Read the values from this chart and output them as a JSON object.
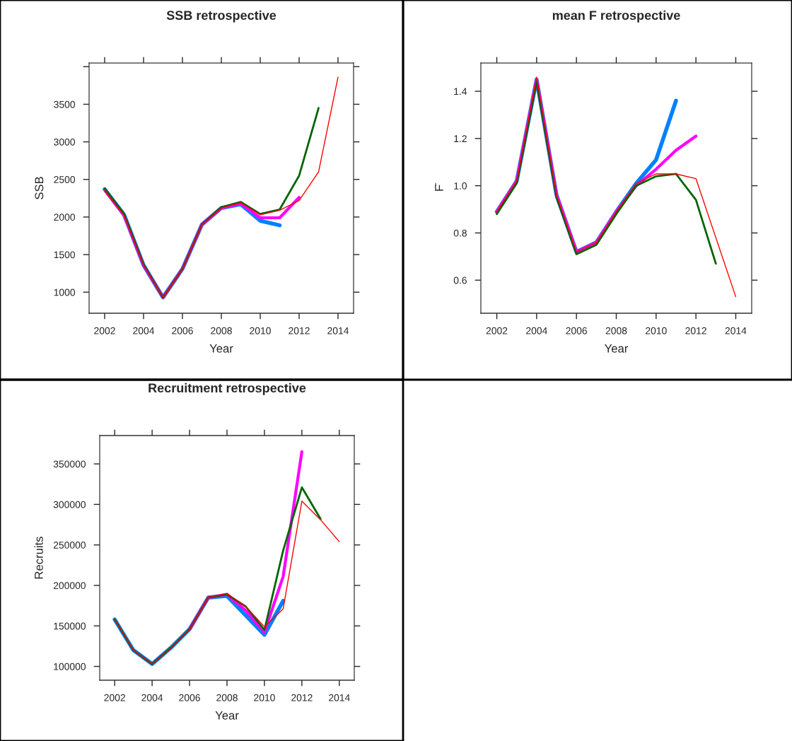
{
  "chart_data": [
    {
      "type": "line",
      "title": "SSB retrospective",
      "xlabel": "Year",
      "ylabel": "SSB",
      "x": [
        2002,
        2003,
        2004,
        2005,
        2006,
        2007,
        2008,
        2009,
        2010,
        2011,
        2012,
        2013,
        2014
      ],
      "series": [
        {
          "color": "#0080ff",
          "values": [
            2370,
            2030,
            1360,
            930,
            1310,
            1900,
            2120,
            2170,
            1950,
            1890,
            null,
            null,
            null
          ]
        },
        {
          "color": "#ff00ff",
          "values": [
            2360,
            2020,
            1360,
            930,
            1310,
            1900,
            2120,
            2180,
            1990,
            1990,
            2260,
            null,
            null
          ]
        },
        {
          "color": "#006400",
          "values": [
            2380,
            2040,
            1370,
            930,
            1310,
            1900,
            2130,
            2200,
            2040,
            2100,
            2550,
            3450,
            null
          ]
        },
        {
          "color": "#ff0000",
          "values": [
            2350,
            2020,
            1360,
            930,
            1310,
            1900,
            2120,
            2190,
            2030,
            2090,
            2220,
            2600,
            3860
          ]
        }
      ],
      "xlim": [
        2001.2,
        2014.8
      ],
      "xticks": [
        2002,
        2004,
        2006,
        2008,
        2010,
        2012,
        2014
      ],
      "ylim": [
        720,
        4050
      ],
      "yticks": [
        1000,
        1500,
        2000,
        2500,
        3000,
        3500,
        {
          "value": 4000,
          "label": null
        }
      ]
    },
    {
      "type": "line",
      "title": "mean F retrospective",
      "xlabel": "Year",
      "ylabel": "F̄",
      "x": [
        2002,
        2003,
        2004,
        2005,
        2006,
        2007,
        2008,
        2009,
        2010,
        2011,
        2012,
        2013,
        2014
      ],
      "series": [
        {
          "color": "#0080ff",
          "values": [
            0.89,
            1.02,
            1.45,
            0.96,
            0.72,
            0.76,
            0.89,
            1.01,
            1.11,
            1.36,
            null,
            null,
            null
          ]
        },
        {
          "color": "#ff00ff",
          "values": [
            0.89,
            1.02,
            1.45,
            0.96,
            0.72,
            0.76,
            0.89,
            1.0,
            1.07,
            1.15,
            1.21,
            null,
            null
          ]
        },
        {
          "color": "#006400",
          "values": [
            0.88,
            1.01,
            1.44,
            0.95,
            0.71,
            0.75,
            0.88,
            1.0,
            1.04,
            1.05,
            0.94,
            0.67,
            null
          ]
        },
        {
          "color": "#ff0000",
          "values": [
            0.89,
            1.02,
            1.46,
            0.96,
            0.72,
            0.76,
            0.89,
            1.01,
            1.05,
            1.05,
            1.03,
            0.78,
            0.53
          ]
        }
      ],
      "xlim": [
        2001.2,
        2014.8
      ],
      "xticks": [
        2002,
        2004,
        2006,
        2008,
        2010,
        2012,
        2014
      ],
      "ylim": [
        0.46,
        1.52
      ],
      "yticks": [
        {
          "value": 0.6,
          "label": "0.6"
        },
        {
          "value": 0.8,
          "label": "0.8"
        },
        {
          "value": 1.0,
          "label": "1.0"
        },
        {
          "value": 1.2,
          "label": "1.2"
        },
        {
          "value": 1.4,
          "label": "1.4"
        }
      ]
    },
    {
      "type": "line",
      "title": "Recruitment retrospective",
      "xlabel": "Year",
      "ylabel": "Recruits",
      "x": [
        2002,
        2003,
        2004,
        2005,
        2006,
        2007,
        2008,
        2009,
        2010,
        2011,
        2012,
        2013,
        2014
      ],
      "series": [
        {
          "color": "#0080ff",
          "values": [
            158000,
            120000,
            103000,
            123000,
            146000,
            185000,
            187000,
            163000,
            139000,
            181000,
            null,
            null,
            null
          ]
        },
        {
          "color": "#ff00ff",
          "values": [
            null,
            null,
            null,
            null,
            146000,
            185000,
            189000,
            169000,
            142000,
            211000,
            365000,
            null,
            null
          ]
        },
        {
          "color": "#006400",
          "values": [
            158000,
            120000,
            103000,
            123000,
            146000,
            185000,
            189000,
            174000,
            145000,
            243000,
            321000,
            282000,
            null
          ]
        },
        {
          "color": "#ff0000",
          "values": [
            158000,
            120000,
            103000,
            123000,
            146000,
            185000,
            190000,
            174000,
            149000,
            171000,
            304000,
            281000,
            254000
          ]
        }
      ],
      "xlim": [
        2001.2,
        2014.8
      ],
      "xticks": [
        2002,
        2004,
        2006,
        2008,
        2010,
        2012,
        2014
      ],
      "ylim": [
        83000,
        385000
      ],
      "yticks": [
        100000,
        150000,
        200000,
        250000,
        300000,
        350000
      ]
    }
  ]
}
